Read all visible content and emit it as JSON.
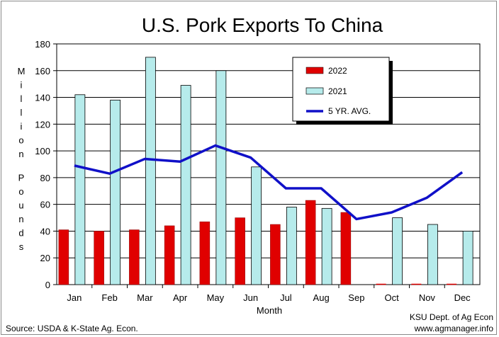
{
  "colors": {
    "series_2022": "#e00000",
    "series_2021": "#b6ebeb",
    "avg_line": "#1010c8",
    "grid": "#000000"
  },
  "footer": {
    "source": "Source:  USDA & K-State Ag. Econ.",
    "credit_line1": "KSU Dept. of Ag Econ",
    "credit_line2": "www.agmanager.info"
  },
  "chart_data": {
    "type": "bar",
    "title": "U.S. Pork Exports To China",
    "xlabel": "Month",
    "ylabel": "Million Pounds",
    "ylim": [
      0,
      180
    ],
    "yticks": [
      0,
      20,
      40,
      60,
      80,
      100,
      120,
      140,
      160,
      180
    ],
    "grid": true,
    "legend_position": "top-right",
    "categories": [
      "Jan",
      "Feb",
      "Mar",
      "Apr",
      "May",
      "Jun",
      "Jul",
      "Aug",
      "Sep",
      "Oct",
      "Nov",
      "Dec"
    ],
    "series": [
      {
        "name": "2022",
        "type": "bar",
        "values": [
          41,
          40,
          41,
          44,
          47,
          50,
          45,
          63,
          54,
          null,
          null,
          null
        ]
      },
      {
        "name": "2021",
        "type": "bar",
        "values": [
          142,
          138,
          170,
          149,
          160,
          88,
          58,
          57,
          null,
          50,
          45,
          40
        ]
      },
      {
        "name": "5 YR. AVG.",
        "type": "line",
        "values": [
          89,
          83,
          94,
          92,
          104,
          95,
          72,
          72,
          49,
          54,
          65,
          84
        ]
      }
    ]
  }
}
